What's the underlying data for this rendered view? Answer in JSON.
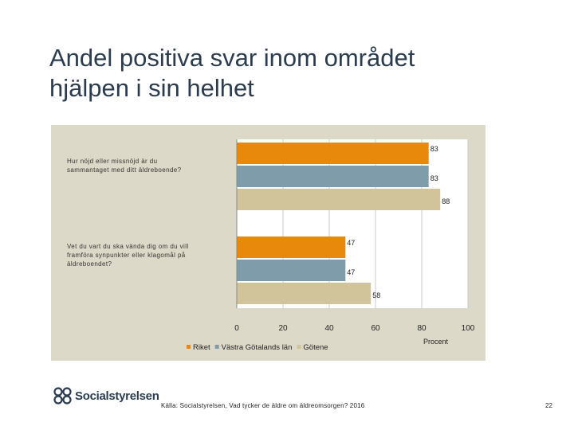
{
  "slide": {
    "title_line1": "Andel positiva svar inom området",
    "title_line2": "hjälpen i sin helhet",
    "source": "Källa: Socialstyrelsen, Vad tycker de äldre om äldreomsorgen? 2016",
    "page_number": "22",
    "logo_text": "Socialstyrelsen"
  },
  "chart_data": {
    "type": "bar",
    "orientation": "horizontal",
    "categories": [
      [
        "Hur nöjd eller missnöjd är du",
        "sammantaget med ditt äldreboende?"
      ],
      [
        "Vet du vart du ska vända dig om du vill",
        "framföra synpunkter eller klagomål på",
        "äldreboendet?"
      ]
    ],
    "series": [
      {
        "name": "Riket",
        "color": "#e8890c",
        "values": [
          83,
          47
        ]
      },
      {
        "name": "Västra Götalands län",
        "color": "#7f9cab",
        "values": [
          83,
          47
        ]
      },
      {
        "name": "Götene",
        "color": "#d1c39a",
        "values": [
          88,
          58
        ]
      }
    ],
    "xlim": [
      0,
      100
    ],
    "xticks": [
      0,
      20,
      40,
      60,
      80,
      100
    ],
    "xlabel": "Procent",
    "grid": true,
    "legend_position": "bottom",
    "background": "#ddd9c8"
  }
}
